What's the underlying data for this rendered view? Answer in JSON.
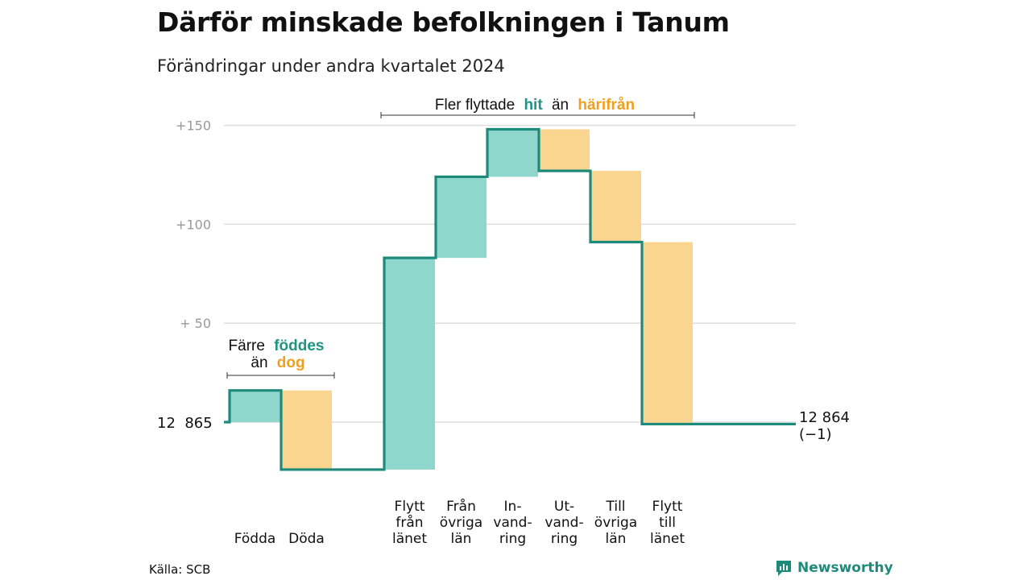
{
  "title": "Därför minskade befolkningen i Tanum",
  "subtitle": "Förändringar under andra kvartalet 2024",
  "source": "Källa: SCB",
  "brand": "Newsworthy",
  "colors": {
    "inflow": "#8fd6cc",
    "outflow": "#fad590",
    "line": "#1e8a7c",
    "accent_teal": "#1f9384",
    "accent_orange": "#f0a020",
    "grid": "#dedede",
    "tick": "#999999"
  },
  "annotations": {
    "left": {
      "line1_prefix": "Färre",
      "line1_bold": "föddes",
      "line2_prefix": "än",
      "line2_bold": "dog"
    },
    "top": {
      "prefix": "Fler flyttade",
      "bold1": "hit",
      "middle": "än",
      "bold2": "härifrån"
    }
  },
  "start_label": "12  865",
  "end_label_line1": "12 864",
  "end_label_line2": "(−1)",
  "chart_data": {
    "type": "waterfall",
    "title": "Därför minskade befolkningen i Tanum",
    "subtitle": "Förändringar under andra kvartalet 2024",
    "baseline_population": 12865,
    "final_population": 12864,
    "net_change": -1,
    "yticks": [
      {
        "value": 50,
        "label": "+  50"
      },
      {
        "value": 100,
        "label": "+100"
      },
      {
        "value": 150,
        "label": "+150"
      }
    ],
    "ylim": [
      -24,
      150
    ],
    "steps": [
      {
        "key": "fodda",
        "label_lines": [
          "Födda"
        ],
        "from": 0,
        "to": 16,
        "kind": "in"
      },
      {
        "key": "doda",
        "label_lines": [
          "Döda"
        ],
        "from": 16,
        "to": -24,
        "kind": "out"
      },
      {
        "key": "flytt_fran_lanet",
        "label_lines": [
          "Flytt",
          "från",
          "länet"
        ],
        "from": -24,
        "to": 83,
        "kind": "in"
      },
      {
        "key": "fran_ovriga_lan",
        "label_lines": [
          "Från",
          "övriga",
          "län"
        ],
        "from": 83,
        "to": 124,
        "kind": "in"
      },
      {
        "key": "invandring",
        "label_lines": [
          "In-",
          "vand-",
          "ring"
        ],
        "from": 124,
        "to": 148,
        "kind": "in"
      },
      {
        "key": "utvandring",
        "label_lines": [
          "Ut-",
          "vand-",
          "ring"
        ],
        "from": 148,
        "to": 127,
        "kind": "out"
      },
      {
        "key": "till_ovriga_lan",
        "label_lines": [
          "Till",
          "övriga",
          "län"
        ],
        "from": 127,
        "to": 91,
        "kind": "out"
      },
      {
        "key": "flytt_till_lanet",
        "label_lines": [
          "Flytt",
          "till",
          "länet"
        ],
        "from": 91,
        "to": -1,
        "kind": "out"
      }
    ]
  }
}
